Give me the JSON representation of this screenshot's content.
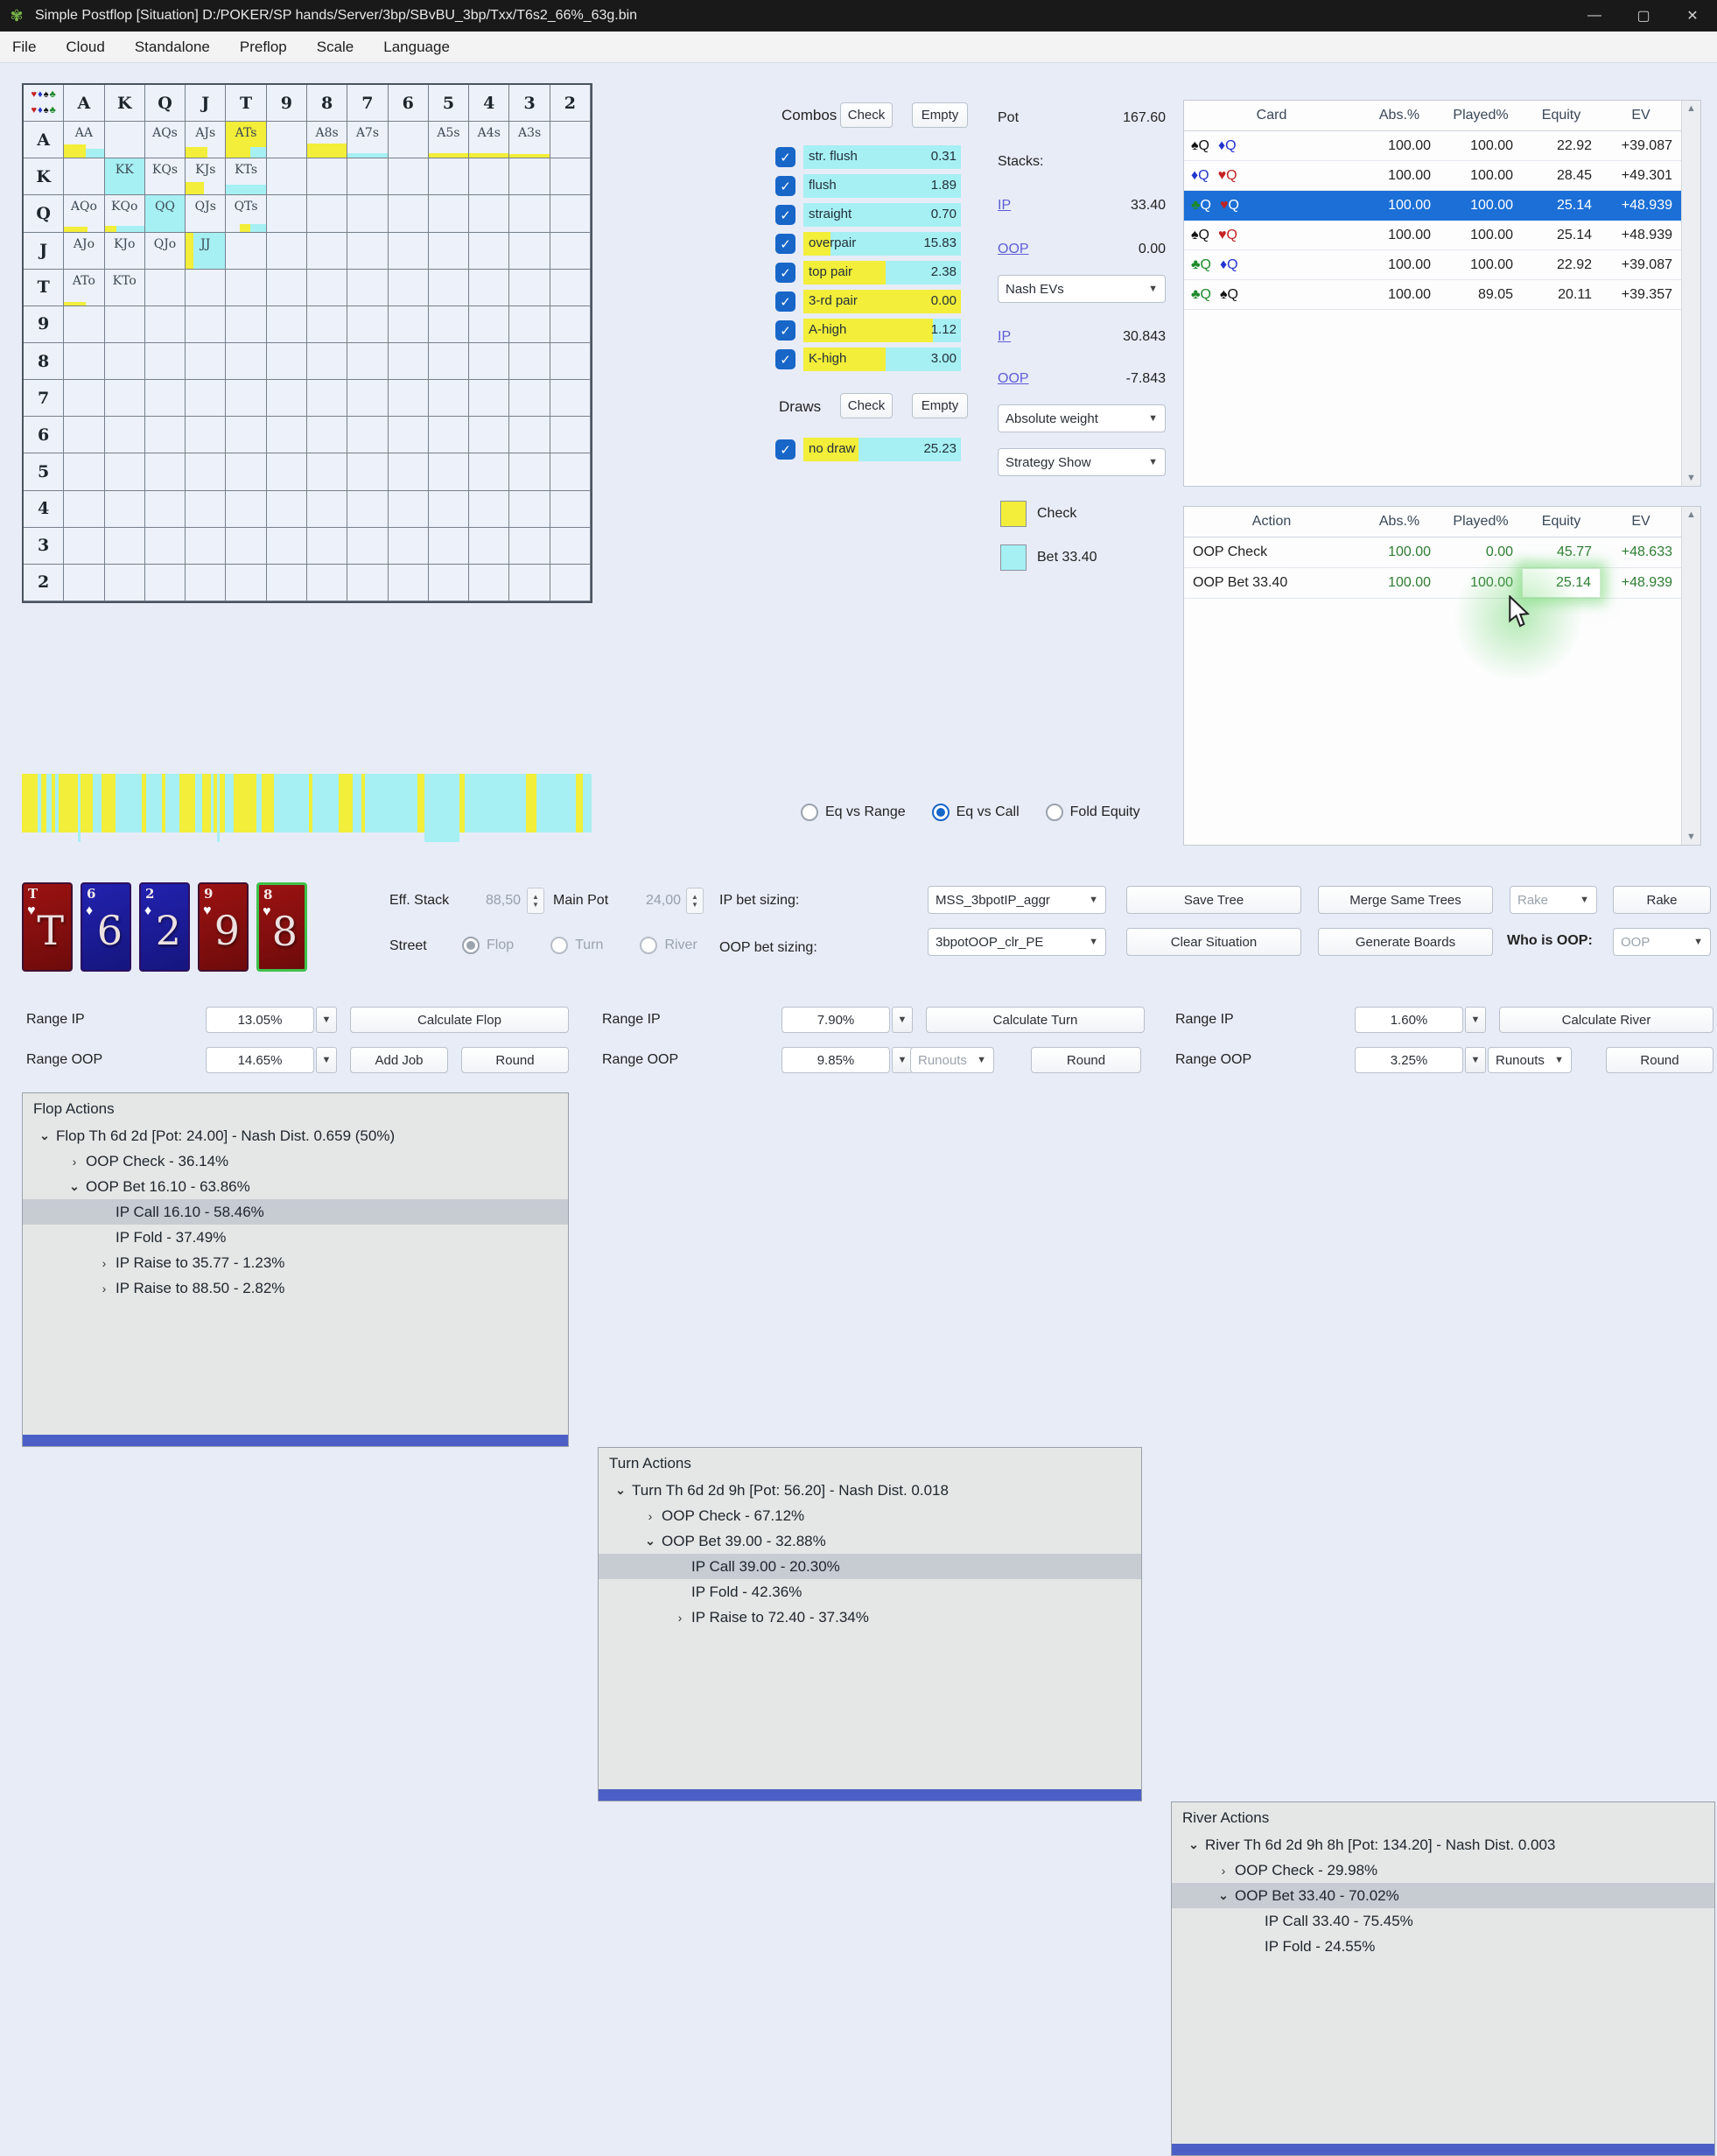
{
  "colors": {
    "yellow": "#f2ee39",
    "cyan": "#a6f0f3",
    "selection_blue": "#1b6fd6",
    "ev_green": "#2e7d32",
    "link_blue": "#5e5ed6",
    "matrix_selected_border": "#c23b2e",
    "tree_scrollbar_blue": "#4b5fc6"
  },
  "window": {
    "title": "Simple Postflop [Situation] D:/POKER/SP hands/Server/3bp/SBvBU_3bp/Txx/T6s2_66%_63g.bin",
    "minimize": "—",
    "maximize": "▢",
    "close": "✕"
  },
  "menu": {
    "items": [
      "File",
      "Cloud",
      "Standalone",
      "Preflop",
      "Scale",
      "Language"
    ]
  },
  "matrix": {
    "ranks": [
      "A",
      "K",
      "Q",
      "J",
      "T",
      "9",
      "8",
      "7",
      "6",
      "5",
      "4",
      "3",
      "2"
    ],
    "corner_suits": [
      {
        "glyph": "♥",
        "color": "#c42222"
      },
      {
        "glyph": "♦",
        "color": "#2233cc"
      },
      {
        "glyph": "♠",
        "color": "#111111"
      },
      {
        "glyph": "♣",
        "color": "#1d8a2a"
      }
    ],
    "cells": [
      {
        "r": 0,
        "c": 0,
        "label": "AA",
        "bars": [
          {
            "c": "y",
            "x": 0,
            "w": 55,
            "h": 38
          },
          {
            "c": "c",
            "x": 55,
            "w": 45,
            "h": 26
          }
        ]
      },
      {
        "r": 0,
        "c": 2,
        "label": "AQs",
        "bars": []
      },
      {
        "r": 0,
        "c": 3,
        "label": "AJs",
        "bars": [
          {
            "c": "y",
            "x": 0,
            "w": 55,
            "h": 30
          }
        ]
      },
      {
        "r": 0,
        "c": 4,
        "label": "ATs",
        "bars": [
          {
            "c": "y",
            "x": 0,
            "w": 100,
            "h": 100
          },
          {
            "c": "c",
            "x": 62,
            "w": 38,
            "h": 30
          }
        ]
      },
      {
        "r": 0,
        "c": 6,
        "label": "A8s",
        "bars": [
          {
            "c": "y",
            "x": 0,
            "w": 100,
            "h": 40
          }
        ]
      },
      {
        "r": 0,
        "c": 7,
        "label": "A7s",
        "bars": [
          {
            "c": "c",
            "x": 0,
            "w": 100,
            "h": 14
          }
        ]
      },
      {
        "r": 0,
        "c": 9,
        "label": "A5s",
        "bars": [
          {
            "c": "y",
            "x": 0,
            "w": 100,
            "h": 12
          }
        ]
      },
      {
        "r": 0,
        "c": 10,
        "label": "A4s",
        "bars": [
          {
            "c": "y",
            "x": 0,
            "w": 100,
            "h": 12
          }
        ]
      },
      {
        "r": 0,
        "c": 11,
        "label": "A3s",
        "bars": [
          {
            "c": "y",
            "x": 0,
            "w": 100,
            "h": 10
          }
        ]
      },
      {
        "r": 1,
        "c": 1,
        "label": "KK",
        "bars": [
          {
            "c": "c",
            "x": 0,
            "w": 100,
            "h": 100
          }
        ]
      },
      {
        "r": 1,
        "c": 2,
        "label": "KQs",
        "bars": []
      },
      {
        "r": 1,
        "c": 3,
        "label": "KJs",
        "bars": [
          {
            "c": "y",
            "x": 0,
            "w": 45,
            "h": 35
          }
        ]
      },
      {
        "r": 1,
        "c": 4,
        "label": "KTs",
        "bars": [
          {
            "c": "c",
            "x": 0,
            "w": 100,
            "h": 28
          }
        ]
      },
      {
        "r": 2,
        "c": 0,
        "label": "AQo",
        "bars": [
          {
            "c": "y",
            "x": 0,
            "w": 60,
            "h": 13
          }
        ]
      },
      {
        "r": 2,
        "c": 1,
        "label": "KQo",
        "bars": [
          {
            "c": "y",
            "x": 0,
            "w": 30,
            "h": 16
          },
          {
            "c": "c",
            "x": 30,
            "w": 70,
            "h": 16
          }
        ]
      },
      {
        "r": 2,
        "c": 2,
        "label": "QQ",
        "selected": true,
        "bars": [
          {
            "c": "c",
            "x": 0,
            "w": 100,
            "h": 100
          }
        ]
      },
      {
        "r": 2,
        "c": 3,
        "label": "QJs",
        "bars": []
      },
      {
        "r": 2,
        "c": 4,
        "label": "QTs",
        "bars": [
          {
            "c": "y",
            "x": 35,
            "w": 25,
            "h": 22
          },
          {
            "c": "c",
            "x": 60,
            "w": 40,
            "h": 22
          }
        ]
      },
      {
        "r": 3,
        "c": 0,
        "label": "AJo",
        "bars": []
      },
      {
        "r": 3,
        "c": 1,
        "label": "KJo",
        "bars": []
      },
      {
        "r": 3,
        "c": 2,
        "label": "QJo",
        "bars": []
      },
      {
        "r": 3,
        "c": 3,
        "label": "JJ",
        "bars": [
          {
            "c": "y",
            "x": 0,
            "w": 20,
            "h": 100
          },
          {
            "c": "c",
            "x": 20,
            "w": 80,
            "h": 100
          }
        ]
      },
      {
        "r": 4,
        "c": 0,
        "label": "ATo",
        "bars": [
          {
            "c": "y",
            "x": 0,
            "w": 55,
            "h": 10
          }
        ]
      },
      {
        "r": 4,
        "c": 1,
        "label": "KTo",
        "bars": []
      }
    ]
  },
  "strip": {
    "segments": [
      [
        "y",
        18
      ],
      [
        "c",
        4
      ],
      [
        "y",
        6
      ],
      [
        "c",
        6
      ],
      [
        "y",
        4
      ],
      [
        "c",
        4
      ],
      [
        "y",
        22
      ],
      [
        "c",
        3
      ],
      [
        "y",
        14
      ],
      [
        "c",
        10
      ],
      [
        "y",
        16
      ],
      [
        "c",
        30
      ],
      [
        "y",
        5
      ],
      [
        "c",
        18
      ],
      [
        "y",
        4
      ],
      [
        "c",
        16
      ],
      [
        "y",
        18
      ],
      [
        "c",
        8
      ],
      [
        "y",
        10
      ],
      [
        "c",
        3
      ],
      [
        "y",
        4
      ],
      [
        "c",
        3
      ],
      [
        "y",
        6
      ],
      [
        "c",
        10
      ],
      [
        "y",
        26
      ],
      [
        "c",
        6
      ],
      [
        "y",
        14
      ],
      [
        "c",
        40
      ],
      [
        "y",
        4
      ],
      [
        "c",
        30
      ],
      [
        "y",
        16
      ],
      [
        "c",
        10
      ],
      [
        "y",
        4
      ],
      [
        "c",
        60
      ],
      [
        "y",
        8
      ],
      [
        "c",
        40
      ],
      [
        "y",
        6
      ],
      [
        "c",
        70
      ],
      [
        "y",
        12
      ],
      [
        "c",
        45
      ],
      [
        "y",
        8
      ],
      [
        "c",
        10
      ]
    ]
  },
  "combos": {
    "title": "Combos",
    "check_btn": "Check",
    "empty_btn": "Empty",
    "items": [
      {
        "label": "str. flush",
        "value": "0.31",
        "yellow": 0
      },
      {
        "label": "flush",
        "value": "1.89",
        "yellow": 0
      },
      {
        "label": "straight",
        "value": "0.70",
        "yellow": 0
      },
      {
        "label": "overpair",
        "value": "15.83",
        "yellow": 0.17
      },
      {
        "label": "top pair",
        "value": "2.38",
        "yellow": 0.52
      },
      {
        "label": "3-rd pair",
        "value": "0.00",
        "yellow": 1
      },
      {
        "label": "A-high",
        "value": "1.12",
        "yellow": 0.82
      },
      {
        "label": "K-high",
        "value": "3.00",
        "yellow": 0.52
      }
    ]
  },
  "draws": {
    "title": "Draws",
    "check_btn": "Check",
    "empty_btn": "Empty",
    "items": [
      {
        "label": "no draw",
        "value": "25.23",
        "yellow": 0.35
      }
    ]
  },
  "pot_panel": {
    "pot_label": "Pot",
    "pot_value": "167.60",
    "stacks_label": "Stacks:",
    "ip_label": "IP",
    "ip_stack": "33.40",
    "oop_label": "OOP",
    "oop_stack": "0.00",
    "nash_dropdown": "Nash EVs",
    "ip_ev": "30.843",
    "oop_ev": "-7.843",
    "weight_dropdown": "Absolute weight",
    "strategy_dropdown": "Strategy Show"
  },
  "legend": {
    "check_label": "Check",
    "bet_label": "Bet 33.40"
  },
  "equity_radios": [
    {
      "label": "Eq vs Range",
      "selected": false
    },
    {
      "label": "Eq vs Call",
      "selected": true
    },
    {
      "label": "Fold Equity",
      "selected": false
    }
  ],
  "card_table": {
    "card_rank": "Q",
    "headers": [
      "Card",
      "Abs.%",
      "Played%",
      "Equity",
      "EV"
    ],
    "rows": [
      {
        "cards": [
          {
            "suit": "♠",
            "color": "#111111"
          },
          {
            "suit": "♦",
            "color": "#2233cc"
          }
        ],
        "abs": "100.00",
        "played": "100.00",
        "equity": "22.92",
        "ev": "+39.087",
        "selected": false
      },
      {
        "cards": [
          {
            "suit": "♦",
            "color": "#2233cc"
          },
          {
            "suit": "♥",
            "color": "#c42222"
          }
        ],
        "abs": "100.00",
        "played": "100.00",
        "equity": "28.45",
        "ev": "+49.301",
        "selected": false
      },
      {
        "cards": [
          {
            "suit": "♣",
            "color": "#1d8a2a"
          },
          {
            "suit": "♥",
            "color": "#c42222"
          }
        ],
        "abs": "100.00",
        "played": "100.00",
        "equity": "25.14",
        "ev": "+48.939",
        "selected": true
      },
      {
        "cards": [
          {
            "suit": "♠",
            "color": "#111111"
          },
          {
            "suit": "♥",
            "color": "#c42222"
          }
        ],
        "abs": "100.00",
        "played": "100.00",
        "equity": "25.14",
        "ev": "+48.939",
        "selected": false
      },
      {
        "cards": [
          {
            "suit": "♣",
            "color": "#1d8a2a"
          },
          {
            "suit": "♦",
            "color": "#2233cc"
          }
        ],
        "abs": "100.00",
        "played": "100.00",
        "equity": "22.92",
        "ev": "+39.087",
        "selected": false
      },
      {
        "cards": [
          {
            "suit": "♣",
            "color": "#1d8a2a"
          },
          {
            "suit": "♠",
            "color": "#111111"
          }
        ],
        "abs": "100.00",
        "played": "89.05",
        "equity": "20.11",
        "ev": "+39.357",
        "selected": false
      }
    ]
  },
  "action_table": {
    "headers": [
      "Action",
      "Abs.%",
      "Played%",
      "Equity",
      "EV"
    ],
    "rows": [
      {
        "action": "OOP Check",
        "abs": "100.00",
        "played": "0.00",
        "equity": "45.77",
        "ev": "+48.633",
        "highlight_equity": false
      },
      {
        "action": "OOP Bet 33.40",
        "abs": "100.00",
        "played": "100.00",
        "equity": "25.14",
        "ev": "+48.939",
        "highlight_equity": true
      }
    ]
  },
  "board_cards": [
    {
      "rank": "T",
      "suit": "♥",
      "style": "red",
      "selected": false
    },
    {
      "rank": "6",
      "suit": "♦",
      "style": "blue",
      "selected": false
    },
    {
      "rank": "2",
      "suit": "♦",
      "style": "blue",
      "selected": false
    },
    {
      "rank": "9",
      "suit": "♥",
      "style": "red",
      "selected": false
    },
    {
      "rank": "8",
      "suit": "♥",
      "style": "red",
      "selected": true
    }
  ],
  "controls": {
    "eff_stack_label": "Eff. Stack",
    "eff_stack_value": "88,50",
    "main_pot_label": "Main Pot",
    "main_pot_value": "24,00",
    "street_label": "Street",
    "street_options": [
      {
        "label": "Flop",
        "selected": true
      },
      {
        "label": "Turn",
        "selected": false
      },
      {
        "label": "River",
        "selected": false
      }
    ],
    "ip_sizing_label": "IP bet sizing:",
    "ip_sizing_value": "MSS_3bpotIP_aggr",
    "oop_sizing_label": "OOP bet sizing:",
    "oop_sizing_value": "3bpotOOP_clr_PE",
    "save_tree_btn": "Save Tree",
    "clear_situation_btn": "Clear Situation",
    "merge_trees_btn": "Merge Same Trees",
    "generate_boards_btn": "Generate Boards",
    "rake_dropdown": "Rake",
    "rake_btn": "Rake",
    "who_is_oop_label": "Who is OOP:",
    "who_is_oop_value": "OOP"
  },
  "range_groups": [
    {
      "ip_label": "Range IP",
      "ip_value": "13.05%",
      "calc_btn": "Calculate Flop",
      "oop_label": "Range OOP",
      "oop_value": "14.65%",
      "btn_a": "Add Job",
      "btn_b": "Round"
    },
    {
      "ip_label": "Range IP",
      "ip_value": "7.90%",
      "calc_btn": "Calculate Turn",
      "oop_label": "Range OOP",
      "oop_value": "9.85%",
      "runouts": "Runouts",
      "runouts_disabled": true,
      "btn_b": "Round"
    },
    {
      "ip_label": "Range IP",
      "ip_value": "1.60%",
      "calc_btn": "Calculate River",
      "oop_label": "Range OOP",
      "oop_value": "3.25%",
      "runouts": "Runouts",
      "runouts_disabled": false,
      "btn_b": "Round"
    }
  ],
  "trees": [
    {
      "title": "Flop Actions",
      "items": [
        {
          "indent": 0,
          "chevron": "down",
          "text": "Flop Th 6d 2d [Pot: 24.00] - Nash Dist. 0.659 (50%)",
          "selected": false
        },
        {
          "indent": 1,
          "chevron": "right",
          "text": "OOP Check - 36.14%",
          "selected": false
        },
        {
          "indent": 1,
          "chevron": "down",
          "text": "OOP Bet 16.10 - 63.86%",
          "selected": false
        },
        {
          "indent": 2,
          "chevron": null,
          "text": "IP Call 16.10 - 58.46%",
          "selected": true
        },
        {
          "indent": 2,
          "chevron": null,
          "text": "IP Fold - 37.49%",
          "selected": false
        },
        {
          "indent": 2,
          "chevron": "right",
          "text": "IP Raise to 35.77 - 1.23%",
          "selected": false
        },
        {
          "indent": 2,
          "chevron": "right",
          "text": "IP Raise to 88.50 - 2.82%",
          "selected": false
        }
      ]
    },
    {
      "title": "Turn Actions",
      "items": [
        {
          "indent": 0,
          "chevron": "down",
          "text": "Turn Th 6d 2d 9h [Pot: 56.20] - Nash Dist. 0.018",
          "selected": false
        },
        {
          "indent": 1,
          "chevron": "right",
          "text": "OOP Check - 67.12%",
          "selected": false
        },
        {
          "indent": 1,
          "chevron": "down",
          "text": "OOP Bet 39.00 - 32.88%",
          "selected": false
        },
        {
          "indent": 2,
          "chevron": null,
          "text": "IP Call 39.00 - 20.30%",
          "selected": true
        },
        {
          "indent": 2,
          "chevron": null,
          "text": "IP Fold - 42.36%",
          "selected": false
        },
        {
          "indent": 2,
          "chevron": "right",
          "text": "IP Raise to 72.40 - 37.34%",
          "selected": false
        }
      ]
    },
    {
      "title": "River Actions",
      "items": [
        {
          "indent": 0,
          "chevron": "down",
          "text": "River Th 6d 2d 9h 8h [Pot: 134.20] - Nash Dist. 0.003",
          "selected": false
        },
        {
          "indent": 1,
          "chevron": "right",
          "text": "OOP Check - 29.98%",
          "selected": false
        },
        {
          "indent": 1,
          "chevron": "down",
          "text": "OOP Bet 33.40 - 70.02%",
          "selected": true
        },
        {
          "indent": 2,
          "chevron": null,
          "text": "IP Call 33.40 - 75.45%",
          "selected": false
        },
        {
          "indent": 2,
          "chevron": null,
          "text": "IP Fold - 24.55%",
          "selected": false
        }
      ]
    }
  ]
}
